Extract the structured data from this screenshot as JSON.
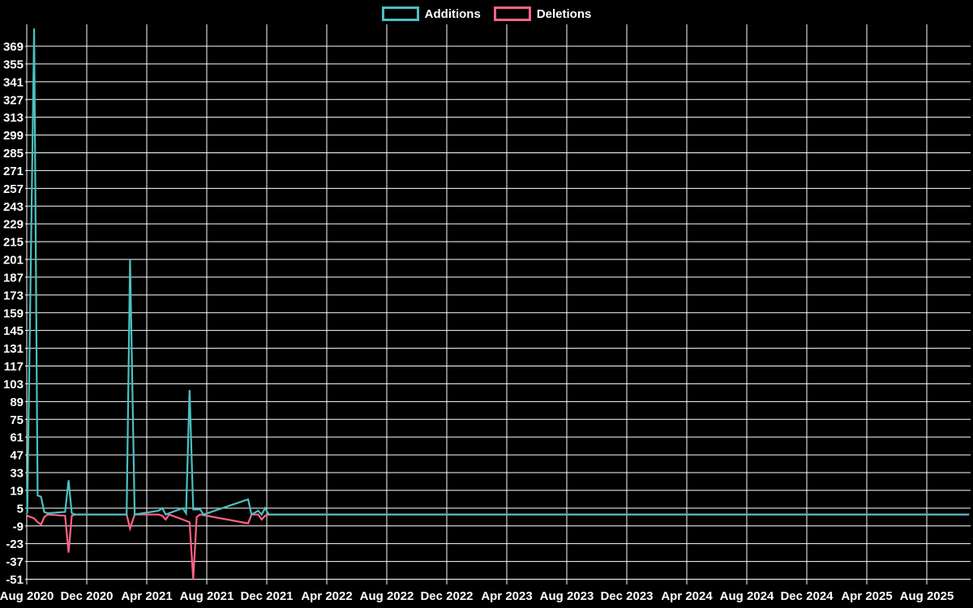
{
  "legend": {
    "items": [
      {
        "label": "Additions",
        "color": "#4bc0c0"
      },
      {
        "label": "Deletions",
        "color": "#ff6384"
      }
    ]
  },
  "chart_data": {
    "type": "line",
    "title": "",
    "xlabel": "",
    "ylabel": "",
    "legend_position": "top",
    "grid": true,
    "background_color": "#000000",
    "grid_color": "#ffffff",
    "text_color": "#ffffff",
    "x_axis": {
      "tick_labels": [
        "Aug 2020",
        "Dec 2020",
        "Apr 2021",
        "Aug 2021",
        "Dec 2021",
        "Apr 2022",
        "Aug 2022",
        "Dec 2022",
        "Apr 2023",
        "Aug 2023",
        "Dec 2023",
        "Apr 2024",
        "Aug 2024",
        "Dec 2024",
        "Apr 2025",
        "Aug 2025"
      ],
      "months_per_tick": 4,
      "start": "2020-08",
      "end_of_data": "2025-10-26"
    },
    "y_axis": {
      "tick_labels": [
        369,
        355,
        341,
        327,
        313,
        299,
        285,
        271,
        257,
        243,
        229,
        215,
        201,
        187,
        173,
        159,
        145,
        131,
        117,
        103,
        89,
        75,
        61,
        47,
        33,
        19,
        5,
        -9,
        -23,
        -37,
        -51
      ],
      "tick_step": 14,
      "axis_min": -51,
      "axis_max": 383
    },
    "series": [
      {
        "name": "Deletions",
        "color": "#ff6384",
        "points": [
          [
            "2020-08-02",
            -1
          ],
          [
            "2020-08-16",
            -3
          ],
          [
            "2020-08-23",
            -6
          ],
          [
            "2020-08-30",
            -8
          ],
          [
            "2020-09-06",
            -2
          ],
          [
            "2020-09-13",
            0
          ],
          [
            "2020-10-18",
            -1
          ],
          [
            "2020-10-25",
            -30
          ],
          [
            "2020-11-01",
            -1
          ],
          [
            "2020-11-08",
            0
          ],
          [
            "2021-02-21",
            0
          ],
          [
            "2021-02-28",
            -11
          ],
          [
            "2021-03-07",
            0
          ],
          [
            "2021-04-25",
            0
          ],
          [
            "2021-05-02",
            -1
          ],
          [
            "2021-05-09",
            -4
          ],
          [
            "2021-05-16",
            0
          ],
          [
            "2021-06-13",
            -4
          ],
          [
            "2021-06-20",
            -5
          ],
          [
            "2021-06-27",
            -6
          ],
          [
            "2021-07-04",
            -51
          ],
          [
            "2021-07-11",
            -2
          ],
          [
            "2021-07-18",
            0
          ],
          [
            "2021-10-24",
            -7
          ],
          [
            "2021-10-31",
            0
          ],
          [
            "2021-11-14",
            0
          ],
          [
            "2021-11-21",
            -4
          ],
          [
            "2021-11-28",
            -1
          ],
          [
            "2021-12-05",
            0
          ],
          [
            "2025-10-26",
            0
          ]
        ]
      },
      {
        "name": "Additions",
        "color": "#4bc0c0",
        "points": [
          [
            "2020-08-02",
            1
          ],
          [
            "2020-08-16",
            383
          ],
          [
            "2020-08-23",
            15
          ],
          [
            "2020-08-30",
            14
          ],
          [
            "2020-09-06",
            2
          ],
          [
            "2020-09-13",
            1
          ],
          [
            "2020-10-18",
            2
          ],
          [
            "2020-10-25",
            27
          ],
          [
            "2020-11-01",
            1
          ],
          [
            "2020-11-08",
            0
          ],
          [
            "2021-02-21",
            0
          ],
          [
            "2021-02-28",
            201
          ],
          [
            "2021-03-07",
            0
          ],
          [
            "2021-04-25",
            3
          ],
          [
            "2021-05-02",
            5
          ],
          [
            "2021-05-09",
            0
          ],
          [
            "2021-06-13",
            5
          ],
          [
            "2021-06-20",
            1
          ],
          [
            "2021-06-27",
            98
          ],
          [
            "2021-07-04",
            4
          ],
          [
            "2021-07-18",
            4
          ],
          [
            "2021-07-25",
            0
          ],
          [
            "2021-10-24",
            12
          ],
          [
            "2021-10-31",
            0
          ],
          [
            "2021-11-14",
            3
          ],
          [
            "2021-11-21",
            0
          ],
          [
            "2021-11-28",
            5
          ],
          [
            "2021-12-05",
            0
          ],
          [
            "2025-10-26",
            0
          ]
        ]
      }
    ]
  }
}
